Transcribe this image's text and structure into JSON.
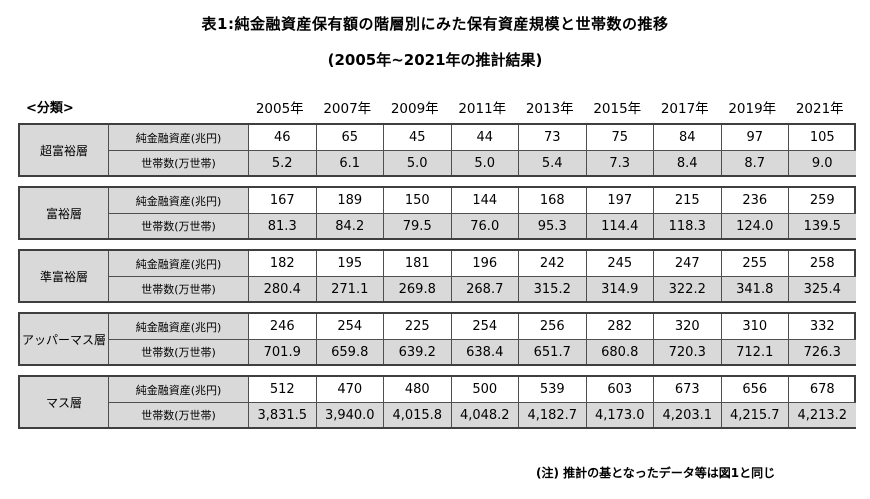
{
  "title": "表1:純金融資産保有額の階層別にみた保有資産規模と世帯数の推移",
  "subtitle": "(2005年~2021年の推計結果)",
  "classification_label": "<分類>",
  "note": "(注) 推計の基となったデータ等は図1と同じ",
  "table": {
    "years": [
      "2005年",
      "2007年",
      "2009年",
      "2011年",
      "2013年",
      "2015年",
      "2017年",
      "2019年",
      "2021年"
    ],
    "asset_label": "純金融資産(兆円)",
    "household_label": "世帯数(万世帯)",
    "groups": [
      {
        "category": "超富裕層",
        "asset_values": [
          "46",
          "65",
          "45",
          "44",
          "73",
          "75",
          "84",
          "97",
          "105"
        ],
        "household_values": [
          "5.2",
          "6.1",
          "5.0",
          "5.0",
          "5.4",
          "7.3",
          "8.4",
          "8.7",
          "9.0"
        ]
      },
      {
        "category": "富裕層",
        "asset_values": [
          "167",
          "189",
          "150",
          "144",
          "168",
          "197",
          "215",
          "236",
          "259"
        ],
        "household_values": [
          "81.3",
          "84.2",
          "79.5",
          "76.0",
          "95.3",
          "114.4",
          "118.3",
          "124.0",
          "139.5"
        ]
      },
      {
        "category": "準富裕層",
        "asset_values": [
          "182",
          "195",
          "181",
          "196",
          "242",
          "245",
          "247",
          "255",
          "258"
        ],
        "household_values": [
          "280.4",
          "271.1",
          "269.8",
          "268.7",
          "315.2",
          "314.9",
          "322.2",
          "341.8",
          "325.4"
        ]
      },
      {
        "category": "アッパーマス層",
        "asset_values": [
          "246",
          "254",
          "225",
          "254",
          "256",
          "282",
          "320",
          "310",
          "332"
        ],
        "household_values": [
          "701.9",
          "659.8",
          "639.2",
          "638.4",
          "651.7",
          "680.8",
          "720.3",
          "712.1",
          "726.3"
        ]
      },
      {
        "category": "マス層",
        "asset_values": [
          "512",
          "470",
          "480",
          "500",
          "539",
          "603",
          "673",
          "656",
          "678"
        ],
        "household_values": [
          "3,831.5",
          "3,940.0",
          "4,015.8",
          "4,048.2",
          "4,182.7",
          "4,173.0",
          "4,203.1",
          "4,215.7",
          "4,213.2"
        ]
      }
    ]
  }
}
